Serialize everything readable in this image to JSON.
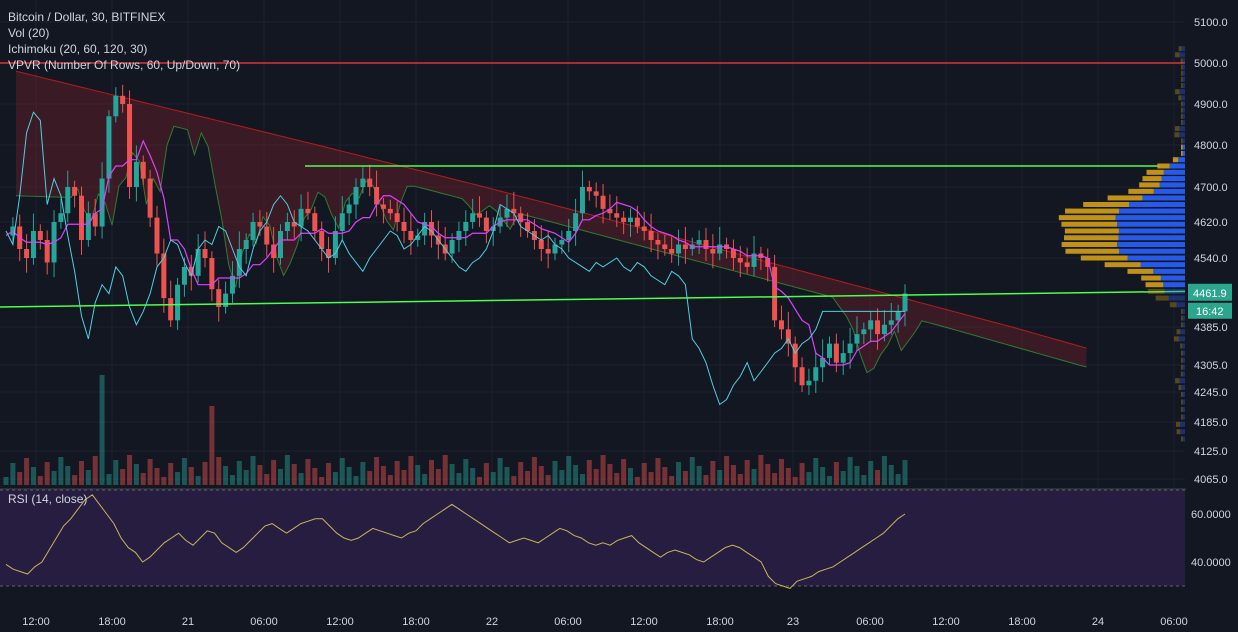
{
  "legend": {
    "symbol": "Bitcoin / Dollar, 30, BITFINEX",
    "volume": "Vol (20)",
    "ichimoku": "Ichimoku (20, 60, 120, 30)",
    "vpvr": "VPVR (Number Of Rows, 60, Up/Down, 70)"
  },
  "rsi": {
    "label": "RSI (14, close)"
  },
  "price_badge": {
    "value": "4461.9",
    "countdown": "16:42"
  },
  "colors": {
    "background": "#131722",
    "up": "#26a69a",
    "down": "#ef5350",
    "horizontal_line": "#e0e0e0",
    "trend_line": "#4caf50",
    "resistance_line": "#ff3b3b",
    "cloud": "#6b1f28",
    "rsi_band": "#2a1f45",
    "price_badge": "#2ca58d",
    "vpvr_up": "#2962ff",
    "vpvr_down": "#d4a017"
  },
  "chart_data": [
    {
      "type": "candlestick",
      "series": [
        {
          "name": "Bitcoin / Dollar, 30, BITFINEX"
        }
      ],
      "x_ticks": [
        "12:00",
        "18:00",
        "21",
        "06:00",
        "12:00",
        "18:00",
        "22",
        "06:00",
        "12:00",
        "18:00",
        "23",
        "06:00",
        "12:00",
        "18:00",
        "24",
        "06:00"
      ],
      "y_ticks": [
        5100.0,
        5000.0,
        4900.0,
        4800.0,
        4700.0,
        4620.0,
        4540.0,
        4385.0,
        4305.0,
        4245.0,
        4185.0,
        4125.0,
        4065.0
      ],
      "y_tick_labels": [
        "5100.0",
        "5000.0",
        "4900.0",
        "4800.0",
        "4700.0",
        "4620.0",
        "4540.0",
        "4385.0",
        "4305.0",
        "4245.0",
        "4185.0",
        "4125.0",
        "4065.0"
      ],
      "last_price": 4461.9,
      "lines": [
        {
          "kind": "horizontal",
          "value": 5000.0
        },
        {
          "kind": "horizontal",
          "value": 4750.0
        },
        {
          "kind": "trend",
          "from": 4430.0,
          "to": 4465.0
        }
      ],
      "closes": [
        4590,
        4610,
        4560,
        4540,
        4600,
        4580,
        4530,
        4620,
        4640,
        4700,
        4680,
        4580,
        4640,
        4610,
        4720,
        4870,
        4920,
        4900,
        4700,
        4760,
        4720,
        4630,
        4550,
        4450,
        4400,
        4480,
        4520,
        4500,
        4560,
        4540,
        4470,
        4430,
        4460,
        4500,
        4560,
        4580,
        4620,
        4610,
        4570,
        4540,
        4600,
        4620,
        4610,
        4650,
        4640,
        4600,
        4560,
        4540,
        4600,
        4640,
        4660,
        4700,
        4720,
        4700,
        4660,
        4650,
        4640,
        4620,
        4600,
        4580,
        4590,
        4620,
        4590,
        4570,
        4550,
        4580,
        4600,
        4620,
        4640,
        4630,
        4600,
        4610,
        4630,
        4650,
        4640,
        4620,
        4600,
        4580,
        4560,
        4550,
        4570,
        4580,
        4600,
        4640,
        4700,
        4690,
        4680,
        4650,
        4640,
        4630,
        4620,
        4630,
        4610,
        4600,
        4580,
        4570,
        4560,
        4550,
        4570,
        4560,
        4570,
        4580,
        4560,
        4550,
        4570,
        4560,
        4540,
        4530,
        4520,
        4550,
        4540,
        4520,
        4400,
        4380,
        4350,
        4300,
        4260,
        4270,
        4300,
        4320,
        4350,
        4310,
        4330,
        4350,
        4370,
        4380,
        4400,
        4370,
        4390,
        4400,
        4420,
        4460
      ],
      "volume": {
        "range": [
          0,
          1
        ]
      }
    },
    {
      "type": "line",
      "series": [
        {
          "name": "RSI (14, close)",
          "values": [
            39,
            37,
            36,
            35,
            38,
            40,
            45,
            50,
            55,
            58,
            62,
            66,
            68,
            64,
            60,
            56,
            50,
            46,
            44,
            40,
            42,
            45,
            48,
            50,
            52,
            49,
            47,
            50,
            53,
            52,
            48,
            46,
            44,
            46,
            49,
            52,
            55,
            56,
            54,
            52,
            54,
            56,
            57,
            58,
            58,
            55,
            52,
            50,
            49,
            50,
            52,
            54,
            53,
            52,
            51,
            50,
            52,
            53,
            56,
            58,
            60,
            62,
            64,
            62,
            60,
            58,
            56,
            54,
            52,
            50,
            48,
            49,
            50,
            49,
            48,
            50,
            52,
            54,
            53,
            51,
            50,
            48,
            47,
            48,
            47,
            49,
            50,
            51,
            48,
            46,
            44,
            42,
            44,
            45,
            44,
            43,
            41,
            40,
            42,
            44,
            46,
            47,
            46,
            44,
            42,
            40,
            34,
            31,
            30,
            29,
            32,
            33,
            34,
            36,
            37,
            38,
            40,
            42,
            44,
            46,
            48,
            50,
            52,
            55,
            58,
            60
          ]
        }
      ],
      "y_ticks": [
        60.0,
        40.0
      ],
      "y_tick_labels": [
        "60.0000",
        "40.0000"
      ],
      "bands": [
        70,
        30
      ],
      "x_ticks": [
        "12:00",
        "18:00",
        "21",
        "06:00",
        "12:00",
        "18:00",
        "22",
        "06:00",
        "12:00",
        "18:00",
        "23",
        "06:00",
        "12:00",
        "18:00",
        "24",
        "06:00"
      ]
    }
  ]
}
